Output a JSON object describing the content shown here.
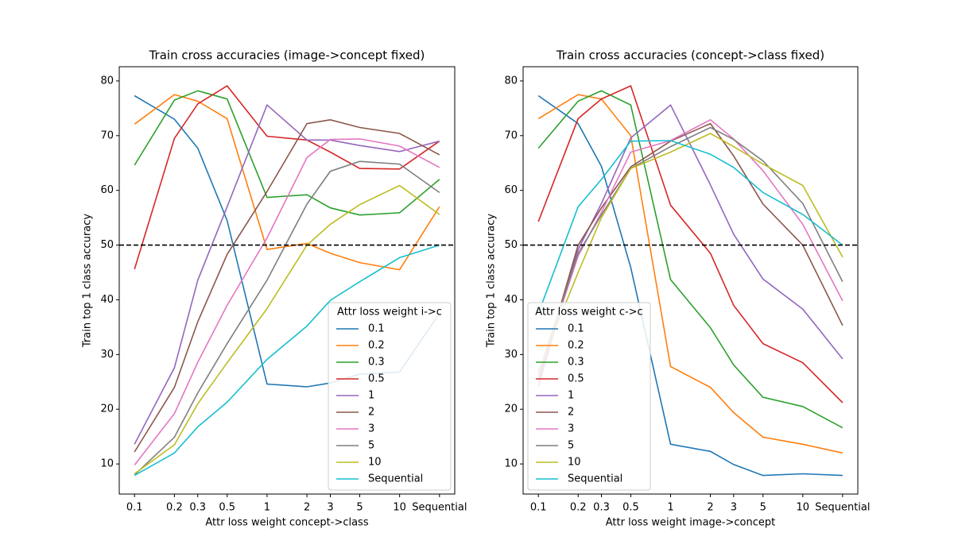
{
  "chart_data": [
    {
      "type": "line",
      "title": "Train cross accuracies (image->concept fixed)",
      "x_label": "Attr loss weight concept->class",
      "y_label": "Train top 1 class accuracy",
      "x": [
        0.1,
        0.2,
        0.3,
        0.5,
        1,
        2,
        3,
        5,
        10,
        20
      ],
      "x_log": true,
      "xlim": [
        0.0767,
        26.06
      ],
      "xticks": [
        0.1,
        0.2,
        0.3,
        0.5,
        1,
        2,
        3,
        5,
        10,
        {
          "value": 20,
          "label": "Sequential"
        }
      ],
      "ylim": [
        4.5,
        82.6
      ],
      "yticks": [
        10,
        20,
        30,
        40,
        50,
        60,
        70,
        80
      ],
      "hline": 50,
      "legend_title": "Attr loss weight i->c",
      "legend_loc": "lower right",
      "series": [
        {
          "name": "0.1",
          "color": "#1f77b4",
          "values": [
            77.3,
            73,
            67.7,
            54.5,
            24.6,
            24.1,
            24.8,
            26.4,
            26.8,
            37.5
          ]
        },
        {
          "name": "0.2",
          "color": "#ff7f0e",
          "values": [
            72.1,
            77.5,
            76.3,
            73.1,
            49.2,
            50.3,
            48.5,
            46.8,
            45.5,
            57
          ]
        },
        {
          "name": "0.3",
          "color": "#2ca02c",
          "values": [
            64.6,
            76.5,
            78.2,
            76.7,
            58.7,
            59.2,
            56.8,
            55.5,
            55.9,
            62
          ]
        },
        {
          "name": "0.5",
          "color": "#d62728",
          "values": [
            45.6,
            69.5,
            75.8,
            79.1,
            69.9,
            69.2,
            67.0,
            64.0,
            63.9,
            69.0
          ]
        },
        {
          "name": "1",
          "color": "#9467bd",
          "values": [
            13.6,
            27.6,
            43.6,
            57.0,
            75.6,
            69.2,
            69.2,
            68.2,
            67.1,
            69.0
          ]
        },
        {
          "name": "2",
          "color": "#8c564b",
          "values": [
            12.2,
            24.0,
            36.0,
            48.3,
            59.8,
            72.2,
            72.9,
            71.5,
            70.4,
            66.5
          ]
        },
        {
          "name": "3",
          "color": "#e377c2",
          "values": [
            9.8,
            19.2,
            28.6,
            39.0,
            51.3,
            66.0,
            69.3,
            69.4,
            68.1,
            64.2
          ]
        },
        {
          "name": "5",
          "color": "#7f7f7f",
          "values": [
            8.0,
            14.9,
            23.0,
            32.0,
            43.6,
            57.5,
            63.5,
            65.3,
            64.8,
            59.6
          ]
        },
        {
          "name": "10",
          "color": "#bcbd22",
          "values": [
            8.2,
            13.5,
            21.0,
            28.5,
            38.4,
            50.0,
            53.8,
            57.4,
            60.9,
            55.6
          ]
        },
        {
          "name": "Sequential",
          "color": "#17becf",
          "values": [
            7.9,
            12.0,
            16.8,
            21.3,
            29.1,
            35.2,
            39.9,
            43.3,
            47.7,
            50.0
          ]
        }
      ]
    },
    {
      "type": "line",
      "title": "Train cross accuracies (concept->class fixed)",
      "x_label": "Attr loss weight image->concept",
      "y_label": "Train top 1 class accuracy",
      "x": [
        0.1,
        0.2,
        0.3,
        0.5,
        1,
        2,
        3,
        5,
        10,
        20
      ],
      "x_log": true,
      "xlim": [
        0.0767,
        26.06
      ],
      "xticks": [
        0.1,
        0.2,
        0.3,
        0.5,
        1,
        2,
        3,
        5,
        10,
        {
          "value": 20,
          "label": "Sequential"
        }
      ],
      "ylim": [
        4.5,
        82.6
      ],
      "yticks": [
        10,
        20,
        30,
        40,
        50,
        60,
        70,
        80
      ],
      "hline": 50,
      "legend_title": "Attr loss weight c->c",
      "legend_loc": "lower left",
      "series": [
        {
          "name": "0.1",
          "color": "#1f77b4",
          "values": [
            77.3,
            72.2,
            64.4,
            45.9,
            13.6,
            12.3,
            9.9,
            7.9,
            8.2,
            7.9
          ]
        },
        {
          "name": "0.2",
          "color": "#ff7f0e",
          "values": [
            73.1,
            77.5,
            76.7,
            70.0,
            27.8,
            24.0,
            19.4,
            14.9,
            13.6,
            12.0
          ]
        },
        {
          "name": "0.3",
          "color": "#2ca02c",
          "values": [
            67.7,
            76.3,
            78.2,
            75.6,
            43.7,
            34.9,
            28.1,
            22.2,
            20.5,
            16.6
          ]
        },
        {
          "name": "0.5",
          "color": "#d62728",
          "values": [
            54.3,
            73.1,
            76.7,
            79.1,
            57.3,
            48.5,
            39.0,
            32.0,
            28.5,
            21.2
          ]
        },
        {
          "name": "1",
          "color": "#9467bd",
          "values": [
            24.2,
            49.2,
            57.6,
            69.6,
            75.6,
            61.0,
            52.0,
            43.8,
            38.3,
            29.2
          ]
        },
        {
          "name": "2",
          "color": "#8c564b",
          "values": [
            25.0,
            50.0,
            56.8,
            64.3,
            69.0,
            72.2,
            66.3,
            57.5,
            50.0,
            35.3
          ]
        },
        {
          "name": "3",
          "color": "#e377c2",
          "values": [
            26.0,
            48.0,
            56.0,
            67.0,
            69.1,
            72.9,
            69.4,
            63.6,
            53.8,
            39.8
          ]
        },
        {
          "name": "5",
          "color": "#7f7f7f",
          "values": [
            26.5,
            48.5,
            55.5,
            64.0,
            68.0,
            71.5,
            69.3,
            65.4,
            57.6,
            43.3
          ]
        },
        {
          "name": "10",
          "color": "#bcbd22",
          "values": [
            27.0,
            45.0,
            55.0,
            64.0,
            67.0,
            70.4,
            68.0,
            64.8,
            60.9,
            47.8
          ]
        },
        {
          "name": "Sequential",
          "color": "#17becf",
          "values": [
            37.5,
            57.0,
            62.0,
            69.0,
            69.1,
            66.6,
            64.2,
            59.6,
            55.6,
            50.0
          ]
        }
      ]
    }
  ]
}
